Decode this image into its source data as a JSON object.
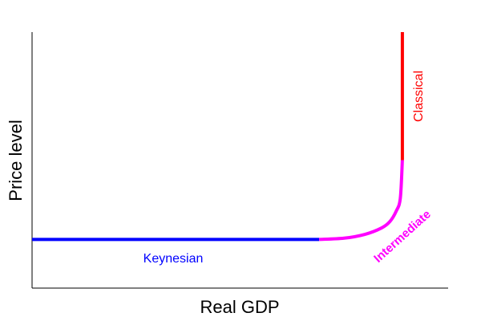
{
  "chart_data": {
    "type": "line",
    "xlabel": "Real GDP",
    "ylabel": "Price level",
    "xlim": [
      0,
      1
    ],
    "ylim": [
      0,
      1
    ],
    "grid": false,
    "legend": "none",
    "segments": [
      {
        "label": "Keynesian",
        "color": "#0000ff",
        "x": [
          0,
          0.69
        ],
        "y": [
          0.19,
          0.19
        ]
      },
      {
        "label": "Intermediate",
        "color": "#ff00ff",
        "x": [
          0.69,
          0.75,
          0.8,
          0.84,
          0.86,
          0.875,
          0.885,
          0.89
        ],
        "y": [
          0.19,
          0.195,
          0.21,
          0.235,
          0.26,
          0.3,
          0.35,
          0.5
        ]
      },
      {
        "label": "Classical",
        "color": "#ff0000",
        "x": [
          0.89,
          0.89
        ],
        "y": [
          0.5,
          1.0
        ]
      }
    ]
  }
}
